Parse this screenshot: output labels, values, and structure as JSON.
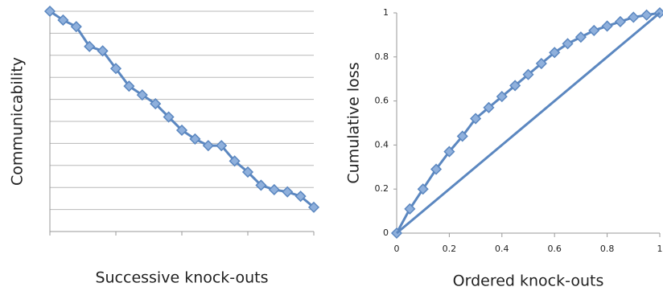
{
  "chart_data": [
    {
      "type": "line",
      "xlabel": "Successive knock-outs",
      "ylabel": "Communicability",
      "xlim": [
        0,
        20
      ],
      "xticks": [
        0,
        5,
        10,
        15,
        20
      ],
      "ylim": [
        0,
        10
      ],
      "yticks": [
        0,
        1,
        2,
        3,
        4,
        5,
        6,
        7,
        8,
        9,
        10
      ],
      "grid": true,
      "tick_labels": false,
      "series": [
        {
          "color": "#5b87c0",
          "marker": "diamond",
          "x": [
            0,
            1,
            2,
            3,
            4,
            5,
            6,
            7,
            8,
            9,
            10,
            11,
            12,
            13,
            14,
            15,
            16,
            17,
            18,
            19,
            20
          ],
          "values": [
            10,
            9.6,
            9.3,
            8.4,
            8.2,
            7.4,
            6.6,
            6.2,
            5.8,
            5.2,
            4.6,
            4.2,
            3.9,
            3.9,
            3.2,
            2.7,
            2.1,
            1.9,
            1.8,
            1.6,
            1.1
          ]
        }
      ]
    },
    {
      "type": "line",
      "xlabel": "Ordered knock-outs",
      "ylabel": "Cumulative loss",
      "xlim": [
        0,
        1
      ],
      "xticks": [
        0,
        0.2,
        0.4,
        0.6,
        0.8,
        1
      ],
      "ylim": [
        0,
        1
      ],
      "yticks": [
        0,
        0.2,
        0.4,
        0.6,
        0.8,
        1
      ],
      "grid": false,
      "tick_labels": true,
      "series": [
        {
          "color": "#5b87c0",
          "marker": "diamond",
          "x": [
            0,
            0.05,
            0.1,
            0.15,
            0.2,
            0.25,
            0.3,
            0.35,
            0.4,
            0.45,
            0.5,
            0.55,
            0.6,
            0.65,
            0.7,
            0.75,
            0.8,
            0.85,
            0.9,
            0.95,
            1
          ],
          "values": [
            0,
            0.11,
            0.2,
            0.29,
            0.37,
            0.44,
            0.52,
            0.57,
            0.62,
            0.67,
            0.72,
            0.77,
            0.82,
            0.86,
            0.89,
            0.92,
            0.94,
            0.96,
            0.98,
            0.99,
            1
          ]
        },
        {
          "color": "#5b87c0",
          "marker": "none",
          "x": [
            0,
            1
          ],
          "values": [
            0,
            1
          ]
        }
      ]
    }
  ]
}
